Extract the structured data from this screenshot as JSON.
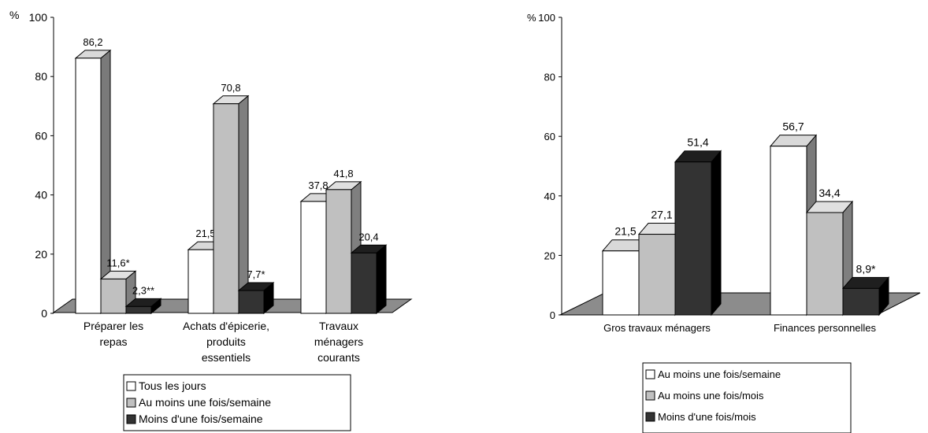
{
  "chart_data": [
    {
      "type": "bar",
      "ylabel": "%",
      "ylim": [
        0,
        100
      ],
      "yticks": [
        "0",
        "20",
        "40",
        "60",
        "80",
        "100"
      ],
      "categories": [
        [
          "Préparer les",
          "repas"
        ],
        [
          "Achats d'épicerie,",
          "produits",
          "essentiels"
        ],
        [
          "Travaux",
          "ménagers",
          "courants"
        ]
      ],
      "series": [
        {
          "name": "Tous les jours",
          "color": "#ffffff",
          "values": [
            86.2,
            21.5,
            37.8
          ],
          "labels": [
            "86,2",
            "21,5",
            "37,8"
          ]
        },
        {
          "name": "Au moins une fois/semaine",
          "color": "#c0c0c0",
          "values": [
            11.6,
            70.8,
            41.8
          ],
          "labels": [
            "11,6*",
            "70,8",
            "41,8"
          ]
        },
        {
          "name": "Moins d'une fois/semaine",
          "color": "#333333",
          "values": [
            2.3,
            7.7,
            20.4
          ],
          "labels": [
            "2,3**",
            "7,7*",
            "20,4"
          ]
        }
      ],
      "grid": false,
      "legend_position": "bottom"
    },
    {
      "type": "bar",
      "ylabel": "%",
      "ylim": [
        0,
        100
      ],
      "yticks": [
        "0",
        "20",
        "40",
        "60",
        "80",
        "100"
      ],
      "categories": [
        [
          "Gros travaux ménagers"
        ],
        [
          "Finances personnelles"
        ]
      ],
      "series": [
        {
          "name": "Au moins une fois/semaine",
          "color": "#ffffff",
          "values": [
            21.5,
            56.7
          ],
          "labels": [
            "21,5",
            "56,7"
          ]
        },
        {
          "name": "Au moins une fois/mois",
          "color": "#c0c0c0",
          "values": [
            27.1,
            34.4
          ],
          "labels": [
            "27,1",
            "34,4"
          ]
        },
        {
          "name": "Moins d'une fois/mois",
          "color": "#333333",
          "values": [
            51.4,
            8.9
          ],
          "labels": [
            "51,4",
            "8,9*"
          ]
        }
      ],
      "grid": false,
      "legend_position": "bottom"
    }
  ]
}
